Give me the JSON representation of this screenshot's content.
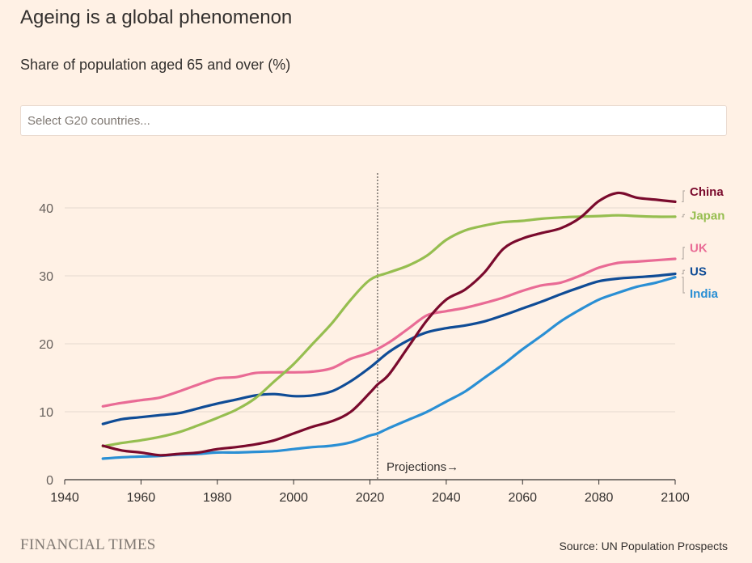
{
  "header": {
    "title": "Ageing is a global phenomenon",
    "subtitle": "Share of population aged 65 and over (%)"
  },
  "search": {
    "placeholder": "Select G20 countries..."
  },
  "footer": {
    "brand": "FINANCIAL TIMES",
    "source": "Source: UN Population Prospects"
  },
  "chart_data": {
    "type": "line",
    "xlim": [
      1940,
      2100
    ],
    "ylim": [
      0,
      45
    ],
    "x_ticks": [
      1940,
      1960,
      1980,
      2000,
      2020,
      2040,
      2060,
      2080,
      2100
    ],
    "y_ticks": [
      0,
      10,
      20,
      30,
      40
    ],
    "grid": "horizontal",
    "annotation": {
      "x": 2022,
      "label": "Projections→"
    },
    "series": [
      {
        "name": "China",
        "color": "#7a0a2d",
        "label_value": 42.5,
        "points": [
          [
            1950,
            5.0
          ],
          [
            1955,
            4.3
          ],
          [
            1960,
            4.0
          ],
          [
            1965,
            3.6
          ],
          [
            1970,
            3.8
          ],
          [
            1975,
            4.0
          ],
          [
            1980,
            4.5
          ],
          [
            1985,
            4.8
          ],
          [
            1990,
            5.2
          ],
          [
            1995,
            5.8
          ],
          [
            2000,
            6.8
          ],
          [
            2005,
            7.8
          ],
          [
            2010,
            8.6
          ],
          [
            2015,
            10.0
          ],
          [
            2020,
            12.8
          ],
          [
            2022,
            14.0
          ],
          [
            2025,
            15.5
          ],
          [
            2030,
            19.5
          ],
          [
            2035,
            23.5
          ],
          [
            2040,
            26.5
          ],
          [
            2045,
            28.0
          ],
          [
            2050,
            30.5
          ],
          [
            2055,
            34.0
          ],
          [
            2060,
            35.5
          ],
          [
            2065,
            36.3
          ],
          [
            2070,
            37.0
          ],
          [
            2075,
            38.5
          ],
          [
            2080,
            41.0
          ],
          [
            2085,
            42.2
          ],
          [
            2090,
            41.5
          ],
          [
            2095,
            41.2
          ],
          [
            2100,
            40.9
          ]
        ]
      },
      {
        "name": "Japan",
        "color": "#96be50",
        "label_value": 39.0,
        "points": [
          [
            1950,
            4.9
          ],
          [
            1955,
            5.4
          ],
          [
            1960,
            5.8
          ],
          [
            1965,
            6.3
          ],
          [
            1970,
            7.0
          ],
          [
            1975,
            8.0
          ],
          [
            1980,
            9.1
          ],
          [
            1985,
            10.3
          ],
          [
            1990,
            12.0
          ],
          [
            1995,
            14.5
          ],
          [
            2000,
            17.0
          ],
          [
            2005,
            20.0
          ],
          [
            2010,
            23.0
          ],
          [
            2015,
            26.5
          ],
          [
            2020,
            29.4
          ],
          [
            2025,
            30.5
          ],
          [
            2030,
            31.5
          ],
          [
            2035,
            33.0
          ],
          [
            2040,
            35.3
          ],
          [
            2045,
            36.7
          ],
          [
            2050,
            37.4
          ],
          [
            2055,
            37.9
          ],
          [
            2060,
            38.1
          ],
          [
            2065,
            38.4
          ],
          [
            2070,
            38.6
          ],
          [
            2075,
            38.7
          ],
          [
            2080,
            38.8
          ],
          [
            2085,
            38.9
          ],
          [
            2090,
            38.8
          ],
          [
            2095,
            38.7
          ],
          [
            2100,
            38.7
          ]
        ]
      },
      {
        "name": "UK",
        "color": "#e96b95",
        "label_value": 34.2,
        "points": [
          [
            1950,
            10.8
          ],
          [
            1955,
            11.3
          ],
          [
            1960,
            11.7
          ],
          [
            1965,
            12.1
          ],
          [
            1970,
            13.0
          ],
          [
            1975,
            14.0
          ],
          [
            1980,
            14.9
          ],
          [
            1985,
            15.1
          ],
          [
            1990,
            15.7
          ],
          [
            1995,
            15.8
          ],
          [
            2000,
            15.8
          ],
          [
            2005,
            15.9
          ],
          [
            2010,
            16.4
          ],
          [
            2015,
            17.8
          ],
          [
            2020,
            18.7
          ],
          [
            2025,
            20.2
          ],
          [
            2030,
            22.2
          ],
          [
            2035,
            24.2
          ],
          [
            2040,
            24.8
          ],
          [
            2045,
            25.3
          ],
          [
            2050,
            26.0
          ],
          [
            2055,
            26.8
          ],
          [
            2060,
            27.8
          ],
          [
            2065,
            28.6
          ],
          [
            2070,
            29.0
          ],
          [
            2075,
            30.0
          ],
          [
            2080,
            31.2
          ],
          [
            2085,
            31.9
          ],
          [
            2090,
            32.1
          ],
          [
            2095,
            32.3
          ],
          [
            2100,
            32.5
          ]
        ]
      },
      {
        "name": "US",
        "color": "#0f4c96",
        "label_value": 30.8,
        "points": [
          [
            1950,
            8.2
          ],
          [
            1955,
            8.9
          ],
          [
            1960,
            9.2
          ],
          [
            1965,
            9.5
          ],
          [
            1970,
            9.8
          ],
          [
            1975,
            10.5
          ],
          [
            1980,
            11.2
          ],
          [
            1985,
            11.8
          ],
          [
            1990,
            12.4
          ],
          [
            1995,
            12.6
          ],
          [
            2000,
            12.3
          ],
          [
            2005,
            12.4
          ],
          [
            2010,
            13.0
          ],
          [
            2015,
            14.5
          ],
          [
            2020,
            16.5
          ],
          [
            2025,
            18.8
          ],
          [
            2030,
            20.5
          ],
          [
            2035,
            21.7
          ],
          [
            2040,
            22.3
          ],
          [
            2045,
            22.7
          ],
          [
            2050,
            23.3
          ],
          [
            2055,
            24.2
          ],
          [
            2060,
            25.2
          ],
          [
            2065,
            26.2
          ],
          [
            2070,
            27.3
          ],
          [
            2075,
            28.3
          ],
          [
            2080,
            29.2
          ],
          [
            2085,
            29.6
          ],
          [
            2090,
            29.8
          ],
          [
            2095,
            30.0
          ],
          [
            2100,
            30.3
          ]
        ]
      },
      {
        "name": "India",
        "color": "#2a8fd4",
        "label_value": 27.5,
        "points": [
          [
            1950,
            3.1
          ],
          [
            1955,
            3.3
          ],
          [
            1960,
            3.4
          ],
          [
            1965,
            3.5
          ],
          [
            1970,
            3.7
          ],
          [
            1975,
            3.8
          ],
          [
            1980,
            4.0
          ],
          [
            1985,
            4.0
          ],
          [
            1990,
            4.1
          ],
          [
            1995,
            4.2
          ],
          [
            2000,
            4.5
          ],
          [
            2005,
            4.8
          ],
          [
            2010,
            5.0
          ],
          [
            2015,
            5.5
          ],
          [
            2020,
            6.5
          ],
          [
            2022,
            6.8
          ],
          [
            2025,
            7.6
          ],
          [
            2030,
            8.8
          ],
          [
            2035,
            10.0
          ],
          [
            2040,
            11.5
          ],
          [
            2045,
            13.0
          ],
          [
            2050,
            15.0
          ],
          [
            2055,
            17.0
          ],
          [
            2060,
            19.2
          ],
          [
            2065,
            21.2
          ],
          [
            2070,
            23.3
          ],
          [
            2075,
            25.0
          ],
          [
            2080,
            26.5
          ],
          [
            2085,
            27.5
          ],
          [
            2090,
            28.4
          ],
          [
            2095,
            29.0
          ],
          [
            2100,
            29.8
          ]
        ]
      }
    ]
  }
}
